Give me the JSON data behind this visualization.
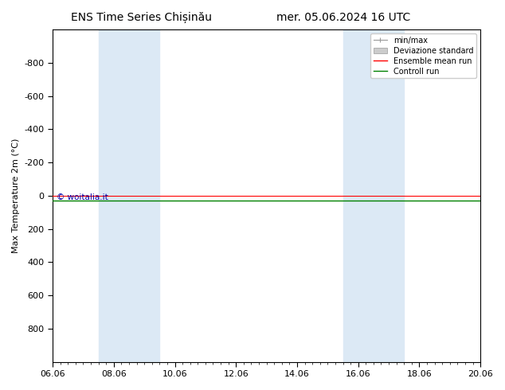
{
  "title_left": "ENS Time Series Chișinău",
  "title_right": "mer. 05.06.2024 16 UTC",
  "ylabel": "Max Temperature 2m (°C)",
  "ylim_bottom": 1000,
  "ylim_top": -1000,
  "yticks": [
    -800,
    -600,
    -400,
    -200,
    0,
    200,
    400,
    600,
    800
  ],
  "xlim_start": 0,
  "xlim_end": 14,
  "xtick_labels": [
    "06.06",
    "08.06",
    "10.06",
    "12.06",
    "14.06",
    "16.06",
    "18.06",
    "20.06"
  ],
  "xtick_positions": [
    0,
    2,
    4,
    6,
    8,
    10,
    12,
    14
  ],
  "shaded_bands": [
    [
      1.7,
      2.3
    ],
    [
      2.7,
      3.3
    ],
    [
      9.7,
      10.3
    ],
    [
      10.7,
      11.3
    ]
  ],
  "shaded_color": "#dce9f5",
  "line_y_red": 15,
  "line_y_green": 25,
  "red_color": "#ff0000",
  "green_color": "#008000",
  "watermark_text": "© woitalia.it",
  "watermark_color": "#0000aa",
  "bg_color": "#ffffff",
  "plot_bg_color": "#ffffff",
  "legend_entries": [
    "min/max",
    "Deviazione standard",
    "Ensemble mean run",
    "Controll run"
  ],
  "title_fontsize": 10,
  "axis_fontsize": 8,
  "tick_fontsize": 8,
  "legend_fontsize": 7
}
